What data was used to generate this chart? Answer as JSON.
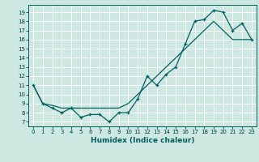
{
  "title": "",
  "xlabel": "Humidex (Indice chaleur)",
  "background_color": "#cce8e0",
  "line_color": "#006060",
  "grid_color": "#ffffff",
  "x_ticks": [
    0,
    1,
    2,
    3,
    4,
    5,
    6,
    7,
    8,
    9,
    10,
    11,
    12,
    13,
    14,
    15,
    16,
    17,
    18,
    19,
    20,
    21,
    22,
    23
  ],
  "y_ticks": [
    7,
    8,
    9,
    10,
    11,
    12,
    13,
    14,
    15,
    16,
    17,
    18,
    19
  ],
  "ylim": [
    6.5,
    19.8
  ],
  "xlim": [
    -0.5,
    23.5
  ],
  "line1_x": [
    0,
    1,
    2,
    3,
    4,
    5,
    6,
    7,
    8,
    9,
    10,
    11,
    12,
    13,
    14,
    15,
    16,
    17,
    18,
    19,
    20,
    21,
    22,
    23
  ],
  "line1_y": [
    11,
    9,
    8.5,
    8,
    8.5,
    7.5,
    7.8,
    7.8,
    7,
    8,
    8,
    9.5,
    12,
    11,
    12.2,
    13,
    15.5,
    18,
    18.2,
    19.2,
    19,
    17,
    17.8,
    16
  ],
  "line2_x": [
    0,
    1,
    2,
    3,
    4,
    5,
    6,
    7,
    8,
    9,
    10,
    11,
    12,
    13,
    14,
    15,
    16,
    17,
    18,
    19,
    20,
    21,
    22,
    23
  ],
  "line2_y": [
    11,
    9,
    8.8,
    8.5,
    8.5,
    8.5,
    8.5,
    8.5,
    8.5,
    8.5,
    9,
    10,
    11,
    12,
    13,
    14,
    15,
    16,
    17,
    18,
    17,
    16,
    16,
    16
  ],
  "xlabel_fontsize": 6.5,
  "xlabel_fontweight": "bold",
  "tick_fontsize": 5,
  "tick_color": "#004040"
}
